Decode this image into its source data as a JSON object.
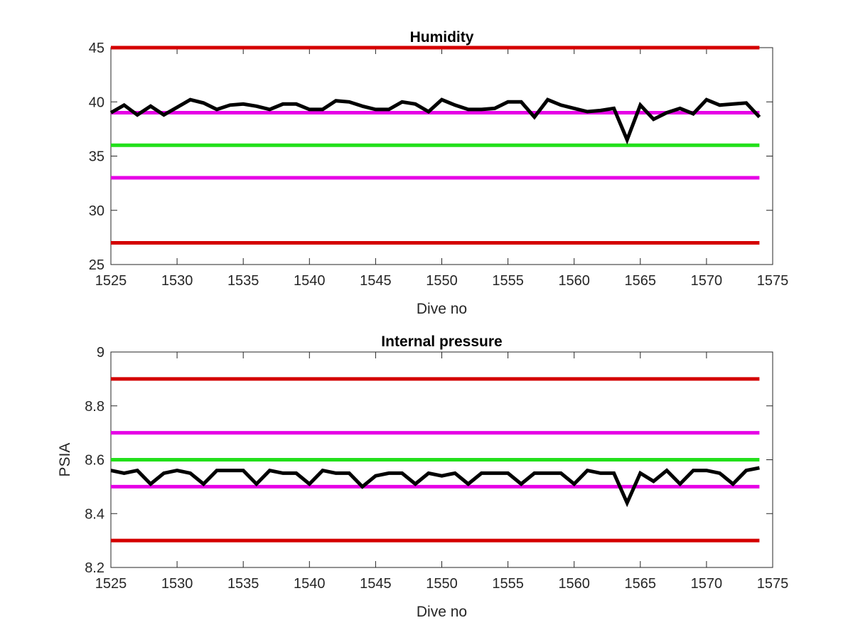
{
  "chart_data": [
    {
      "type": "line",
      "title": "Humidity",
      "xlabel": "Dive no",
      "ylabel": "",
      "xlim": [
        1525,
        1575
      ],
      "ylim": [
        25,
        45
      ],
      "xticks": [
        1525,
        1530,
        1535,
        1540,
        1545,
        1550,
        1555,
        1560,
        1565,
        1570,
        1575
      ],
      "yticks": [
        25,
        30,
        35,
        40,
        45
      ],
      "grid": false,
      "reference_lines": [
        {
          "y": 45,
          "color": "#d40000"
        },
        {
          "y": 39,
          "color": "#e600e6"
        },
        {
          "y": 36,
          "color": "#22e01a"
        },
        {
          "y": 33,
          "color": "#e600e6"
        },
        {
          "y": 27,
          "color": "#d40000"
        }
      ],
      "series": [
        {
          "color": "#000000",
          "x": [
            1525,
            1526,
            1527,
            1528,
            1529,
            1530,
            1531,
            1532,
            1533,
            1534,
            1535,
            1536,
            1537,
            1538,
            1539,
            1540,
            1541,
            1542,
            1543,
            1544,
            1545,
            1546,
            1547,
            1548,
            1549,
            1550,
            1551,
            1552,
            1553,
            1554,
            1555,
            1556,
            1557,
            1558,
            1559,
            1560,
            1561,
            1562,
            1563,
            1564,
            1565,
            1566,
            1567,
            1568,
            1569,
            1570,
            1571,
            1572,
            1573,
            1574
          ],
          "y": [
            39.0,
            39.7,
            38.8,
            39.6,
            38.8,
            39.5,
            40.2,
            39.9,
            39.3,
            39.7,
            39.8,
            39.6,
            39.3,
            39.8,
            39.8,
            39.3,
            39.3,
            40.1,
            40.0,
            39.6,
            39.3,
            39.3,
            40.0,
            39.8,
            39.1,
            40.2,
            39.7,
            39.3,
            39.3,
            39.4,
            40.0,
            40.0,
            38.6,
            40.2,
            39.7,
            39.4,
            39.1,
            39.2,
            39.4,
            36.5,
            39.7,
            38.4,
            39.0,
            39.4,
            38.9,
            40.2,
            39.7,
            39.8,
            39.9,
            38.6
          ]
        }
      ]
    },
    {
      "type": "line",
      "title": "Internal pressure",
      "xlabel": "Dive no",
      "ylabel": "PSIA",
      "xlim": [
        1525,
        1575
      ],
      "ylim": [
        8.2,
        9.0
      ],
      "xticks": [
        1525,
        1530,
        1535,
        1540,
        1545,
        1550,
        1555,
        1560,
        1565,
        1570,
        1575
      ],
      "yticks": [
        8.2,
        8.4,
        8.6,
        8.8,
        9.0
      ],
      "ytick_labels": [
        "8.2",
        "8.4",
        "8.6",
        "8.8",
        "9"
      ],
      "grid": false,
      "reference_lines": [
        {
          "y": 8.9,
          "color": "#d40000"
        },
        {
          "y": 8.7,
          "color": "#e600e6"
        },
        {
          "y": 8.6,
          "color": "#22e01a"
        },
        {
          "y": 8.5,
          "color": "#e600e6"
        },
        {
          "y": 8.3,
          "color": "#d40000"
        }
      ],
      "series": [
        {
          "color": "#000000",
          "x": [
            1525,
            1526,
            1527,
            1528,
            1529,
            1530,
            1531,
            1532,
            1533,
            1534,
            1535,
            1536,
            1537,
            1538,
            1539,
            1540,
            1541,
            1542,
            1543,
            1544,
            1545,
            1546,
            1547,
            1548,
            1549,
            1550,
            1551,
            1552,
            1553,
            1554,
            1555,
            1556,
            1557,
            1558,
            1559,
            1560,
            1561,
            1562,
            1563,
            1564,
            1565,
            1566,
            1567,
            1568,
            1569,
            1570,
            1571,
            1572,
            1573,
            1574
          ],
          "y": [
            8.56,
            8.55,
            8.56,
            8.51,
            8.55,
            8.56,
            8.55,
            8.51,
            8.56,
            8.56,
            8.56,
            8.51,
            8.56,
            8.55,
            8.55,
            8.51,
            8.56,
            8.55,
            8.55,
            8.5,
            8.54,
            8.55,
            8.55,
            8.51,
            8.55,
            8.54,
            8.55,
            8.51,
            8.55,
            8.55,
            8.55,
            8.51,
            8.55,
            8.55,
            8.55,
            8.51,
            8.56,
            8.55,
            8.55,
            8.44,
            8.55,
            8.52,
            8.56,
            8.51,
            8.56,
            8.56,
            8.55,
            8.51,
            8.56,
            8.57
          ]
        }
      ]
    }
  ]
}
